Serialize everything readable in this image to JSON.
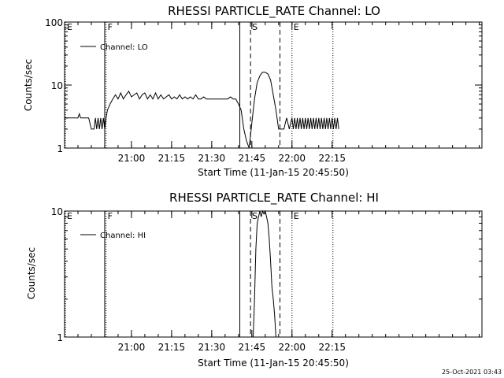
{
  "chart_data": [
    {
      "type": "line",
      "title": "RHESSI PARTICLE_RATE Channel: LO",
      "xlabel": "Start Time (11-Jan-15 20:45:50)",
      "ylabel": "Counts/sec",
      "yscale": "log",
      "ylim": [
        1,
        100
      ],
      "xlim_minutes": [
        50,
        206
      ],
      "xticks": [
        {
          "m": 75,
          "label": "21:00"
        },
        {
          "m": 90,
          "label": "21:15"
        },
        {
          "m": 105,
          "label": "21:30"
        },
        {
          "m": 120,
          "label": "21:45"
        },
        {
          "m": 135,
          "label": "22:00"
        },
        {
          "m": 150,
          "label": "22:15"
        }
      ],
      "yticks": [
        {
          "v": 1,
          "label": "1"
        },
        {
          "v": 10,
          "label": "10"
        },
        {
          "v": 100,
          "label": "100"
        }
      ],
      "legend": {
        "entry": "Channel: LO",
        "placement": "top-left"
      },
      "markers": [
        {
          "m": 50.3,
          "style": "dotted",
          "letter": "E"
        },
        {
          "m": 65.5,
          "style": "dotted",
          "letter": "F"
        },
        {
          "m": 65.0,
          "style": "solid",
          "letter": ""
        },
        {
          "m": 115.5,
          "style": "solid",
          "letter": ""
        },
        {
          "m": 119.5,
          "style": "dashed",
          "letter": "S"
        },
        {
          "m": 130.5,
          "style": "dashed",
          "letter": ""
        },
        {
          "m": 135.0,
          "style": "dotted",
          "letter": "E"
        },
        {
          "m": 150.3,
          "style": "dotted",
          "letter": ""
        }
      ],
      "series": [
        {
          "name": "Channel: LO",
          "points": [
            [
              50,
              3
            ],
            [
              51,
              3
            ],
            [
              52,
              3
            ],
            [
              53,
              3
            ],
            [
              54,
              3
            ],
            [
              55,
              3
            ],
            [
              55.5,
              3.5
            ],
            [
              56,
              3
            ],
            [
              57,
              3
            ],
            [
              58,
              3
            ],
            [
              59,
              3
            ],
            [
              60,
              2
            ],
            [
              61,
              2
            ],
            [
              61.5,
              3
            ],
            [
              62,
              2
            ],
            [
              62.5,
              3
            ],
            [
              63,
              2
            ],
            [
              63.5,
              3
            ],
            [
              64,
              2
            ],
            [
              64.5,
              3
            ],
            [
              65,
              2
            ],
            [
              65.5,
              3
            ],
            [
              66,
              4
            ],
            [
              67,
              5
            ],
            [
              68,
              6
            ],
            [
              69,
              7
            ],
            [
              70,
              6
            ],
            [
              71,
              7.5
            ],
            [
              72,
              6
            ],
            [
              73,
              7
            ],
            [
              74,
              8
            ],
            [
              75,
              6.5
            ],
            [
              76,
              7
            ],
            [
              77,
              7.5
            ],
            [
              78,
              6
            ],
            [
              79,
              7
            ],
            [
              80,
              7.5
            ],
            [
              81,
              6
            ],
            [
              82,
              7
            ],
            [
              83,
              6
            ],
            [
              84,
              7.5
            ],
            [
              85,
              6
            ],
            [
              86,
              7
            ],
            [
              87,
              6
            ],
            [
              88,
              6.5
            ],
            [
              89,
              7
            ],
            [
              90,
              6
            ],
            [
              91,
              6.5
            ],
            [
              92,
              6
            ],
            [
              93,
              7
            ],
            [
              94,
              6
            ],
            [
              95,
              6.5
            ],
            [
              96,
              6
            ],
            [
              97,
              6.5
            ],
            [
              98,
              6
            ],
            [
              99,
              7
            ],
            [
              100,
              6
            ],
            [
              101,
              6
            ],
            [
              102,
              6.5
            ],
            [
              103,
              6
            ],
            [
              104,
              6
            ],
            [
              105,
              6
            ],
            [
              106,
              6
            ],
            [
              107,
              6
            ],
            [
              108,
              6
            ],
            [
              109,
              6
            ],
            [
              110,
              6
            ],
            [
              111,
              6
            ],
            [
              112,
              6.5
            ],
            [
              113,
              6
            ],
            [
              114,
              6
            ],
            [
              115,
              5
            ],
            [
              116,
              4
            ],
            [
              117,
              2
            ],
            [
              118,
              1.3
            ],
            [
              119,
              1
            ],
            [
              120,
              2.5
            ],
            [
              121,
              6
            ],
            [
              122,
              11
            ],
            [
              123,
              14
            ],
            [
              124,
              16
            ],
            [
              125,
              16
            ],
            [
              126,
              15
            ],
            [
              127,
              12
            ],
            [
              128,
              7
            ],
            [
              129,
              4
            ],
            [
              130,
              2
            ],
            [
              131,
              2
            ],
            [
              132,
              2
            ],
            [
              132.5,
              2.5
            ],
            [
              133,
              3
            ],
            [
              134,
              2
            ],
            [
              134.5,
              2.5
            ],
            [
              135,
              3
            ],
            [
              135.5,
              2
            ],
            [
              136,
              3
            ],
            [
              136.5,
              2
            ],
            [
              137,
              3
            ],
            [
              137.5,
              2
            ],
            [
              138,
              3
            ],
            [
              138.5,
              2
            ],
            [
              139,
              3
            ],
            [
              139.5,
              2
            ],
            [
              140,
              3
            ],
            [
              140.5,
              2
            ],
            [
              141,
              3
            ],
            [
              141.5,
              2
            ],
            [
              142,
              3
            ],
            [
              142.5,
              2
            ],
            [
              143,
              3
            ],
            [
              143.5,
              2
            ],
            [
              144,
              3
            ],
            [
              144.5,
              2
            ],
            [
              145,
              3
            ],
            [
              145.5,
              2
            ],
            [
              146,
              3
            ],
            [
              146.5,
              2
            ],
            [
              147,
              3
            ],
            [
              147.5,
              2
            ],
            [
              148,
              3
            ],
            [
              148.5,
              2
            ],
            [
              149,
              3
            ],
            [
              149.5,
              2
            ],
            [
              150,
              3
            ],
            [
              150.5,
              2
            ],
            [
              151,
              3
            ],
            [
              151.5,
              2
            ],
            [
              152,
              3
            ],
            [
              152.5,
              2
            ]
          ]
        }
      ]
    },
    {
      "type": "line",
      "title": "RHESSI PARTICLE_RATE Channel: HI",
      "xlabel": "Start Time (11-Jan-15 20:45:50)",
      "ylabel": "Counts/sec",
      "yscale": "log",
      "ylim": [
        1,
        10
      ],
      "xlim_minutes": [
        50,
        206
      ],
      "xticks": [
        {
          "m": 75,
          "label": "21:00"
        },
        {
          "m": 90,
          "label": "21:15"
        },
        {
          "m": 105,
          "label": "21:30"
        },
        {
          "m": 120,
          "label": "21:45"
        },
        {
          "m": 135,
          "label": "22:00"
        },
        {
          "m": 150,
          "label": "22:15"
        }
      ],
      "yticks": [
        {
          "v": 1,
          "label": "1"
        },
        {
          "v": 10,
          "label": "10"
        }
      ],
      "legend": {
        "entry": "Channel: HI",
        "placement": "top-left"
      },
      "markers": [
        {
          "m": 50.3,
          "style": "dotted",
          "letter": "E"
        },
        {
          "m": 65.5,
          "style": "dotted",
          "letter": "F"
        },
        {
          "m": 65.0,
          "style": "solid",
          "letter": ""
        },
        {
          "m": 115.5,
          "style": "solid",
          "letter": ""
        },
        {
          "m": 119.5,
          "style": "dashed",
          "letter": "S"
        },
        {
          "m": 130.5,
          "style": "dashed",
          "letter": ""
        },
        {
          "m": 135.0,
          "style": "dotted",
          "letter": "E"
        },
        {
          "m": 150.3,
          "style": "dotted",
          "letter": ""
        }
      ],
      "series": [
        {
          "name": "Channel: HI",
          "points": [
            [
              120.5,
              1
            ],
            [
              121,
              2
            ],
            [
              121.5,
              5
            ],
            [
              122,
              8
            ],
            [
              122.5,
              9
            ],
            [
              123,
              10
            ],
            [
              123.5,
              9
            ],
            [
              124,
              10
            ],
            [
              124.5,
              9.5
            ],
            [
              125,
              10
            ],
            [
              125.5,
              9
            ],
            [
              126,
              8
            ],
            [
              126.5,
              6
            ],
            [
              127,
              4
            ],
            [
              127.5,
              2.5
            ],
            [
              128,
              2
            ],
            [
              128.5,
              1.5
            ],
            [
              129,
              1
            ]
          ]
        }
      ]
    }
  ],
  "footer": {
    "stamp": "25-Oct-2021 03:43"
  }
}
